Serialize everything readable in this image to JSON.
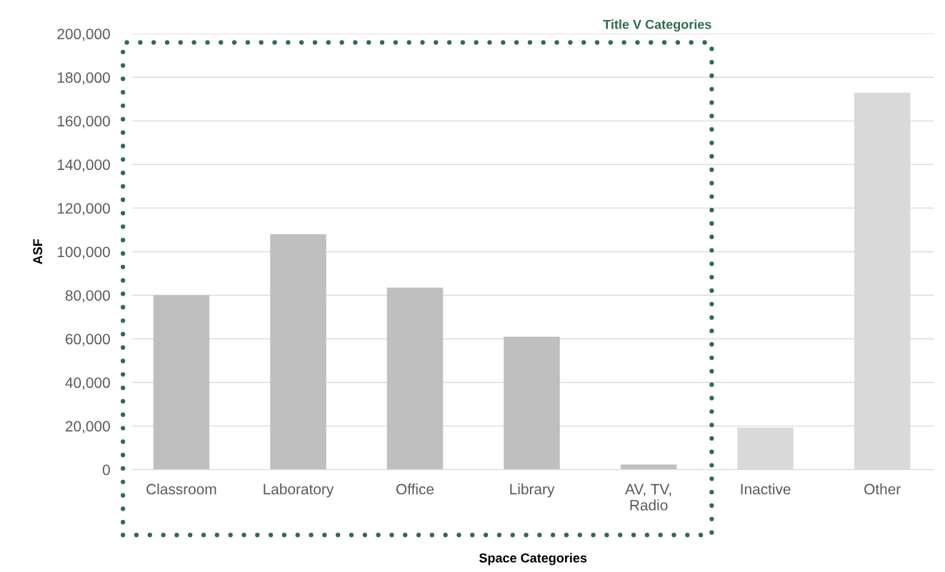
{
  "chart_data": {
    "type": "bar",
    "xlabel": "Space Categories",
    "ylabel": "ASF",
    "categories": [
      "Classroom",
      "Laboratory",
      "Office",
      "Library",
      "AV, TV,\nRadio",
      "Inactive",
      "Other"
    ],
    "values": [
      80000,
      108000,
      83500,
      61000,
      2300,
      19300,
      173000
    ],
    "colors": [
      "#bfbfbf",
      "#bfbfbf",
      "#bfbfbf",
      "#bfbfbf",
      "#bfbfbf",
      "#d9d9d9",
      "#d9d9d9"
    ],
    "ylim": [
      0,
      200000
    ],
    "yticks": [
      {
        "value": 0,
        "label": "0"
      },
      {
        "value": 20000,
        "label": "20,000"
      },
      {
        "value": 40000,
        "label": "40,000"
      },
      {
        "value": 60000,
        "label": "60,000"
      },
      {
        "value": 80000,
        "label": "80,000"
      },
      {
        "value": 100000,
        "label": "100,000"
      },
      {
        "value": 120000,
        "label": "120,000"
      },
      {
        "value": 140000,
        "label": "140,000"
      },
      {
        "value": 160000,
        "label": "160,000"
      },
      {
        "value": 180000,
        "label": "180,000"
      },
      {
        "value": 200000,
        "label": "200,000"
      }
    ],
    "grid": "y",
    "legend": false,
    "annotations": [
      "Title V Categories"
    ]
  }
}
